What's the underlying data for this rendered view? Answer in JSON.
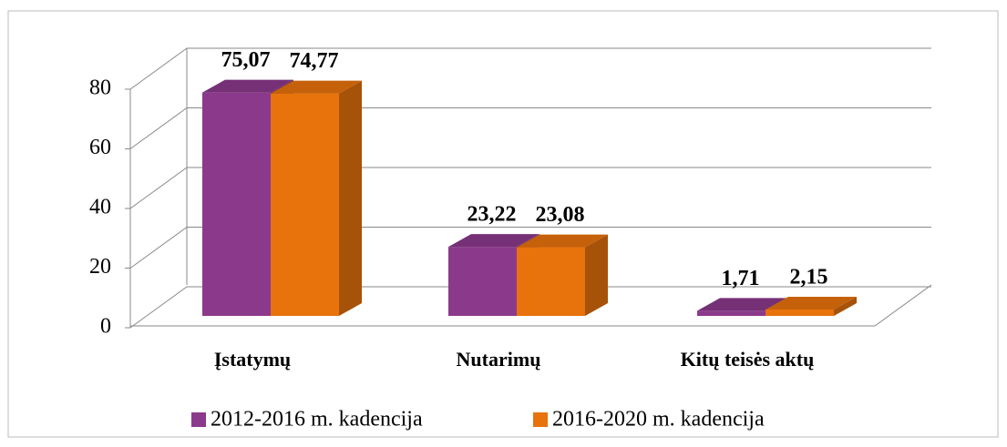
{
  "chart_data": {
    "type": "bar3d",
    "categories": [
      "Įstatymų",
      "Nutarimų",
      "Kitų teisės aktų"
    ],
    "series": [
      {
        "name": "2012-2016 m. kadencija",
        "color": "#8b3a8b",
        "values": [
          75.07,
          23.22,
          1.71
        ],
        "value_labels": [
          "75,07",
          "23,22",
          "1,71"
        ]
      },
      {
        "name": "2016-2020 m. kadencija",
        "color": "#e8720c",
        "values": [
          74.77,
          23.08,
          2.15
        ],
        "value_labels": [
          "74,77",
          "23,08",
          "2,15"
        ]
      }
    ],
    "ylim": [
      0,
      80
    ],
    "yticks": [
      0,
      20,
      40,
      60,
      80
    ],
    "grid": true,
    "legend": "bottom"
  }
}
